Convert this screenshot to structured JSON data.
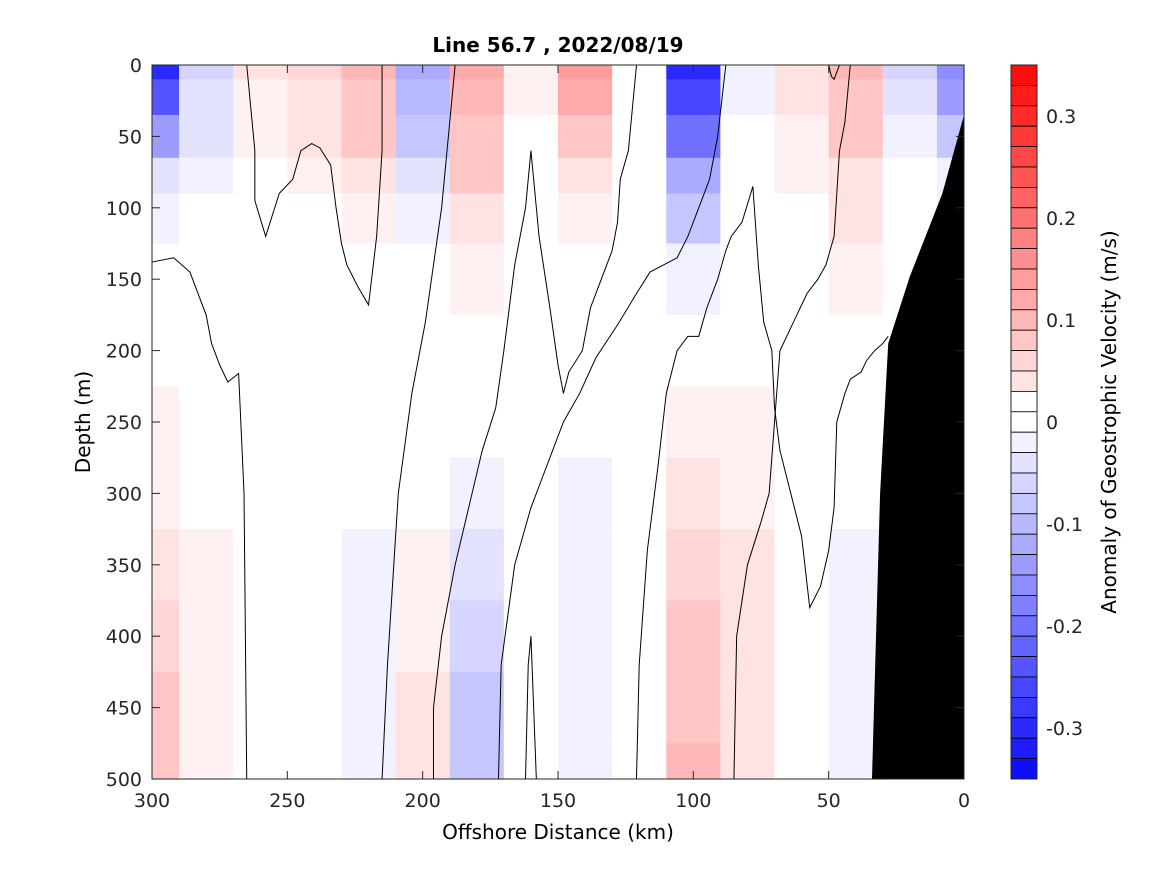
{
  "chart_data": {
    "type": "heatmap",
    "title": "Line 56.7 , 2022/08/19",
    "xlabel": "Offshore Distance (km)",
    "ylabel": "Depth (m)",
    "xlim": [
      300,
      0
    ],
    "x_reversed": true,
    "ylim": [
      0,
      500
    ],
    "y_reversed": true,
    "x_ticks": [
      "300",
      "250",
      "200",
      "150",
      "100",
      "50",
      "0"
    ],
    "y_ticks": [
      "0",
      "50",
      "100",
      "150",
      "200",
      "250",
      "300",
      "350",
      "400",
      "450",
      "500"
    ],
    "colorbar": {
      "label": "Anomaly of Geostrophic Velocity (m/s)",
      "range": [
        -0.35,
        0.35
      ],
      "step": 0.02,
      "ticks": [
        "0.3",
        "0.2",
        "0.1",
        "0",
        "-0.1",
        "-0.2",
        "-0.3"
      ],
      "tick_values": [
        0.3,
        0.2,
        0.1,
        0,
        -0.1,
        -0.2,
        -0.3
      ],
      "positive_color": "#ff0000",
      "negative_color": "#0000ff",
      "zero_color": "#ffffff"
    },
    "x_grid_km": [
      300,
      280,
      260,
      240,
      220,
      200,
      180,
      160,
      140,
      120,
      100,
      80,
      60,
      40,
      20,
      0
    ],
    "y_grid_m": [
      0,
      20,
      50,
      80,
      100,
      150,
      200,
      250,
      300,
      350,
      400,
      450,
      500
    ],
    "velocity": [
      [
        -0.3,
        -0.06,
        0.04,
        0.06,
        0.1,
        -0.12,
        0.12,
        0.02,
        0.14,
        0.0,
        -0.31,
        -0.02,
        0.04,
        0.1,
        -0.06,
        -0.16
      ],
      [
        -0.24,
        -0.05,
        0.03,
        0.05,
        0.09,
        -0.1,
        0.11,
        0.02,
        0.12,
        0.0,
        -0.26,
        -0.02,
        0.04,
        0.09,
        -0.05,
        -0.14
      ],
      [
        -0.14,
        -0.04,
        0.03,
        0.04,
        0.07,
        -0.07,
        0.09,
        0.01,
        0.09,
        0.0,
        -0.2,
        -0.01,
        0.03,
        0.07,
        -0.03,
        -0.08
      ],
      [
        -0.04,
        -0.02,
        0.01,
        0.02,
        0.05,
        -0.04,
        0.07,
        0.01,
        0.05,
        0.0,
        -0.12,
        -0.01,
        0.02,
        0.05,
        -0.01,
        -0.03
      ],
      [
        -0.02,
        -0.01,
        0.0,
        0.01,
        0.03,
        -0.02,
        0.05,
        0.0,
        0.03,
        0.0,
        -0.07,
        0.0,
        0.01,
        0.04,
        0.0,
        -0.02
      ],
      [
        0.0,
        0.0,
        0.0,
        0.0,
        0.01,
        -0.01,
        0.03,
        0.0,
        0.01,
        0.0,
        -0.02,
        0.0,
        0.0,
        0.02,
        0.0,
        0.0
      ],
      [
        0.0,
        0.0,
        0.0,
        0.0,
        0.0,
        0.0,
        0.01,
        0.0,
        0.0,
        0.0,
        0.0,
        0.0,
        0.0,
        0.0,
        0.0,
        0.0
      ],
      [
        0.02,
        0.0,
        0.0,
        0.0,
        0.0,
        0.0,
        0.0,
        0.0,
        0.0,
        0.0,
        0.03,
        0.03,
        0.0,
        0.0,
        0.0,
        0.0
      ],
      [
        0.03,
        0.01,
        0.0,
        0.0,
        -0.01,
        0.0,
        -0.02,
        0.0,
        -0.02,
        0.0,
        0.04,
        0.03,
        0.0,
        -0.01,
        0.0,
        0.0
      ],
      [
        0.05,
        0.02,
        0.0,
        0.0,
        -0.02,
        0.02,
        -0.04,
        0.0,
        -0.03,
        0.0,
        0.06,
        0.04,
        0.0,
        -0.02,
        0.0,
        0.0
      ],
      [
        0.06,
        0.03,
        0.0,
        0.0,
        -0.02,
        0.03,
        -0.06,
        0.0,
        -0.03,
        0.0,
        0.08,
        0.05,
        0.0,
        -0.02,
        0.0,
        0.0
      ],
      [
        0.07,
        0.03,
        0.0,
        0.0,
        -0.02,
        0.04,
        -0.07,
        0.0,
        -0.03,
        0.0,
        0.09,
        0.05,
        0.0,
        -0.02,
        0.0,
        0.0
      ],
      [
        0.07,
        0.03,
        0.0,
        0.0,
        -0.02,
        0.05,
        -0.08,
        0.0,
        -0.03,
        0.0,
        0.11,
        0.05,
        0.0,
        -0.02,
        0.0,
        0.0
      ]
    ],
    "bathymetry": {
      "color": "#000000",
      "x_km": [
        0,
        0,
        8,
        20,
        28,
        31,
        34
      ],
      "depth_m": [
        500,
        35,
        90,
        148,
        195,
        300,
        500
      ]
    },
    "zero_contour_lines": [
      [
        [
          300,
          138
        ],
        [
          292,
          135
        ],
        [
          286,
          145
        ],
        [
          280,
          175
        ],
        [
          278,
          195
        ],
        [
          275,
          210
        ],
        [
          272,
          222
        ],
        [
          268,
          216
        ],
        [
          266,
          300
        ],
        [
          265,
          500
        ]
      ],
      [
        [
          265,
          0
        ],
        [
          262,
          60
        ],
        [
          262,
          95
        ],
        [
          258,
          120
        ],
        [
          253,
          90
        ],
        [
          248,
          80
        ],
        [
          245,
          60
        ],
        [
          241,
          55
        ],
        [
          238,
          58
        ],
        [
          234,
          70
        ],
        [
          232,
          100
        ],
        [
          230,
          125
        ],
        [
          228,
          140
        ],
        [
          224,
          155
        ],
        [
          220,
          168
        ],
        [
          217,
          120
        ],
        [
          215,
          60
        ],
        [
          215,
          0
        ]
      ],
      [
        [
          215,
          500
        ],
        [
          213,
          420
        ],
        [
          209,
          300
        ],
        [
          204,
          230
        ],
        [
          199,
          180
        ],
        [
          196,
          140
        ],
        [
          193,
          100
        ],
        [
          191,
          60
        ],
        [
          188,
          0
        ]
      ],
      [
        [
          196,
          500
        ],
        [
          196,
          450
        ],
        [
          193,
          400
        ],
        [
          188,
          350
        ],
        [
          183,
          310
        ],
        [
          178,
          270
        ],
        [
          173,
          240
        ],
        [
          170,
          200
        ],
        [
          166,
          140
        ],
        [
          162,
          100
        ],
        [
          160,
          60
        ],
        [
          157,
          120
        ],
        [
          153,
          170
        ],
        [
          150,
          210
        ],
        [
          148,
          230
        ],
        [
          146,
          215
        ],
        [
          141,
          200
        ],
        [
          138,
          170
        ],
        [
          134,
          150
        ],
        [
          130,
          130
        ],
        [
          128,
          110
        ],
        [
          127,
          80
        ],
        [
          124,
          60
        ],
        [
          121,
          0
        ]
      ],
      [
        [
          172,
          500
        ],
        [
          171,
          420
        ],
        [
          166,
          350
        ],
        [
          160,
          310
        ],
        [
          156,
          290
        ],
        [
          152,
          270
        ],
        [
          148,
          250
        ],
        [
          142,
          230
        ],
        [
          136,
          205
        ],
        [
          128,
          182
        ],
        [
          121,
          160
        ],
        [
          116,
          145
        ],
        [
          111,
          140
        ],
        [
          106,
          135
        ],
        [
          102,
          120
        ],
        [
          98,
          100
        ],
        [
          94,
          80
        ],
        [
          91,
          50
        ],
        [
          88,
          0
        ]
      ],
      [
        [
          162,
          500
        ],
        [
          161,
          420
        ],
        [
          160,
          400
        ],
        [
          158,
          500
        ]
      ],
      [
        [
          121,
          500
        ],
        [
          120,
          420
        ],
        [
          117,
          340
        ],
        [
          113,
          280
        ],
        [
          110,
          230
        ],
        [
          106,
          200
        ],
        [
          102,
          190
        ],
        [
          98,
          190
        ],
        [
          95,
          170
        ],
        [
          91,
          150
        ],
        [
          88,
          130
        ],
        [
          86,
          120
        ],
        [
          82,
          110
        ],
        [
          78,
          85
        ],
        [
          76,
          140
        ],
        [
          74,
          180
        ],
        [
          71,
          200
        ],
        [
          70,
          240
        ],
        [
          68,
          270
        ],
        [
          64,
          300
        ],
        [
          60,
          330
        ],
        [
          57,
          380
        ],
        [
          53,
          365
        ],
        [
          50,
          340
        ],
        [
          48,
          310
        ],
        [
          47,
          250
        ],
        [
          44,
          230
        ],
        [
          42,
          220
        ],
        [
          38,
          215
        ],
        [
          36,
          207
        ],
        [
          33,
          200
        ],
        [
          30,
          195
        ],
        [
          28,
          190
        ]
      ],
      [
        [
          85,
          500
        ],
        [
          84,
          400
        ],
        [
          80,
          350
        ],
        [
          75,
          320
        ],
        [
          72,
          300
        ],
        [
          70,
          250
        ],
        [
          68,
          200
        ],
        [
          63,
          180
        ],
        [
          58,
          160
        ],
        [
          54,
          150
        ],
        [
          51,
          140
        ],
        [
          48,
          120
        ],
        [
          47,
          90
        ],
        [
          46,
          60
        ],
        [
          44,
          40
        ],
        [
          43,
          20
        ],
        [
          42,
          0
        ]
      ],
      [
        [
          50,
          0
        ],
        [
          49,
          8
        ],
        [
          48,
          10
        ],
        [
          47,
          5
        ],
        [
          46,
          0
        ]
      ]
    ]
  }
}
